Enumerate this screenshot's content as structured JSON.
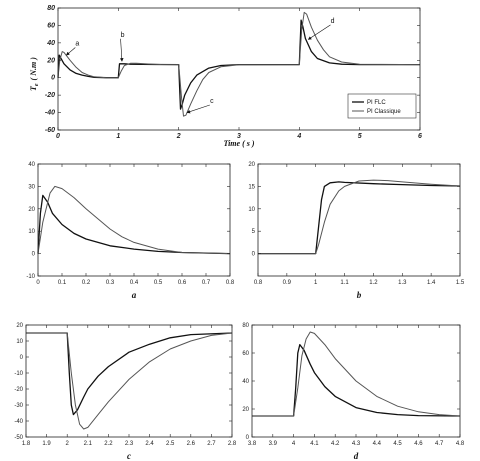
{
  "chart_data": [
    {
      "id": "main",
      "type": "line",
      "xlabel": "Time ( s )",
      "ylabel": "T",
      "ylabel_sub": "e",
      "ylabel_unit": "( N.m )",
      "xlim": [
        0,
        6
      ],
      "ylim": [
        -60,
        80
      ],
      "xticks": [
        0,
        1,
        2,
        3,
        4,
        5,
        6
      ],
      "yticks": [
        -60,
        -40,
        -20,
        0,
        20,
        40,
        60,
        80
      ],
      "legend": {
        "placement": "bottom-right",
        "entries": [
          "PI FLC",
          "PI Classique"
        ]
      },
      "annotations": [
        "a",
        "b",
        "c",
        "d"
      ],
      "series": [
        {
          "name": "PI FLC",
          "x": [
            0,
            0.02,
            0.05,
            0.1,
            0.2,
            0.3,
            0.4,
            0.5,
            0.6,
            0.8,
            1.0,
            1.02,
            1.06,
            1.1,
            1.2,
            1.4,
            1.6,
            2.0,
            2.03,
            2.06,
            2.1,
            2.2,
            2.3,
            2.5,
            2.7,
            3.0,
            4.0,
            4.03,
            4.06,
            4.1,
            4.2,
            4.3,
            4.5,
            4.7,
            5.0,
            6.0
          ],
          "y": [
            0,
            26,
            22,
            16,
            9,
            5,
            3,
            1.5,
            0.5,
            0,
            0,
            16,
            16,
            16,
            15.5,
            15.3,
            15.2,
            15,
            -36,
            -30,
            -20,
            -6,
            3,
            11,
            14,
            15,
            15,
            66,
            58,
            45,
            30,
            22,
            17,
            15.5,
            15,
            15
          ]
        },
        {
          "name": "PI Classique",
          "x": [
            0,
            0.03,
            0.07,
            0.1,
            0.2,
            0.3,
            0.4,
            0.5,
            0.6,
            0.8,
            1.0,
            1.05,
            1.1,
            1.2,
            1.3,
            1.5,
            1.7,
            2.0,
            2.05,
            2.08,
            2.12,
            2.2,
            2.3,
            2.4,
            2.5,
            2.7,
            3.0,
            4.0,
            4.04,
            4.08,
            4.12,
            4.2,
            4.3,
            4.4,
            4.5,
            4.7,
            5.0,
            6.0
          ],
          "y": [
            0,
            20,
            30,
            29,
            20,
            12,
            6,
            3,
            1,
            0,
            0,
            8,
            14,
            16.5,
            16.5,
            15.7,
            15.2,
            15,
            -25,
            -44,
            -43,
            -30,
            -15,
            -2,
            6,
            12.5,
            14.8,
            15,
            55,
            75,
            73,
            58,
            43,
            32,
            24,
            18,
            15.5,
            15
          ]
        }
      ]
    },
    {
      "id": "a",
      "type": "line",
      "caption": "a",
      "xlim": [
        0,
        0.8
      ],
      "ylim": [
        -10,
        40
      ],
      "xticks": [
        "0",
        "0.1",
        "0.2",
        "0.3",
        "0.4",
        "0.5",
        "0.6",
        "0.7",
        "0.8"
      ],
      "yticks": [
        "-10",
        "0",
        "10",
        "20",
        "30",
        "40"
      ],
      "series": [
        {
          "name": "",
          "x": [
            0,
            0.01,
            0.02,
            0.04,
            0.06,
            0.1,
            0.15,
            0.2,
            0.3,
            0.4,
            0.5,
            0.6,
            0.8
          ],
          "y": [
            0,
            18,
            26,
            23,
            18,
            13,
            9,
            6.5,
            3.5,
            2,
            1,
            0.5,
            0
          ]
        },
        {
          "name": "",
          "x": [
            0,
            0.02,
            0.05,
            0.07,
            0.1,
            0.15,
            0.2,
            0.25,
            0.3,
            0.35,
            0.4,
            0.5,
            0.6,
            0.8
          ],
          "y": [
            0,
            14,
            27,
            30,
            29,
            25,
            20,
            15.5,
            11,
            7.5,
            5,
            2,
            0.5,
            0
          ]
        }
      ]
    },
    {
      "id": "b",
      "type": "line",
      "caption": "b",
      "xlim": [
        0.8,
        1.5
      ],
      "ylim": [
        -5,
        20
      ],
      "xticks": [
        "0.8",
        "0.9",
        "1",
        "1.1",
        "1.2",
        "1.3",
        "1.4",
        "1.5"
      ],
      "yticks": [
        "0",
        "5",
        "10",
        "15",
        "20"
      ],
      "series": [
        {
          "name": "",
          "x": [
            0.8,
            1.0,
            1.01,
            1.02,
            1.03,
            1.05,
            1.08,
            1.1,
            1.2,
            1.3,
            1.4,
            1.5
          ],
          "y": [
            0,
            0,
            6,
            12,
            15,
            15.8,
            16,
            15.9,
            15.6,
            15.4,
            15.2,
            15.1
          ]
        },
        {
          "name": "",
          "x": [
            0.8,
            1.0,
            1.01,
            1.03,
            1.05,
            1.08,
            1.1,
            1.15,
            1.2,
            1.25,
            1.3,
            1.4,
            1.5
          ],
          "y": [
            0,
            0,
            2,
            7,
            11,
            14,
            15,
            16.2,
            16.4,
            16.3,
            16,
            15.5,
            15.1
          ]
        }
      ]
    },
    {
      "id": "c",
      "type": "line",
      "caption": "c",
      "xlim": [
        1.8,
        2.8
      ],
      "ylim": [
        -50,
        20
      ],
      "xticks": [
        "1.8",
        "1.9",
        "2",
        "2.1",
        "2.2",
        "2.3",
        "2.4",
        "2.5",
        "2.6",
        "2.7",
        "2.8"
      ],
      "yticks": [
        "-50",
        "-40",
        "-30",
        "-20",
        "-10",
        "0",
        "10",
        "20"
      ],
      "series": [
        {
          "name": "",
          "x": [
            1.8,
            2.0,
            2.01,
            2.02,
            2.03,
            2.05,
            2.08,
            2.1,
            2.15,
            2.2,
            2.3,
            2.4,
            2.5,
            2.6,
            2.8
          ],
          "y": [
            15,
            15,
            -10,
            -30,
            -36,
            -33,
            -25,
            -20,
            -12,
            -6,
            3,
            8,
            12,
            14,
            15
          ]
        },
        {
          "name": "",
          "x": [
            1.8,
            2.0,
            2.02,
            2.04,
            2.06,
            2.08,
            2.1,
            2.15,
            2.2,
            2.3,
            2.4,
            2.5,
            2.6,
            2.7,
            2.8
          ],
          "y": [
            15,
            15,
            -10,
            -30,
            -42,
            -45,
            -44,
            -36,
            -28,
            -14,
            -3,
            5,
            10,
            13.5,
            15
          ]
        }
      ]
    },
    {
      "id": "d",
      "type": "line",
      "caption": "d",
      "xlim": [
        3.8,
        4.8
      ],
      "ylim": [
        0,
        80
      ],
      "xticks": [
        "3.8",
        "3.9",
        "4",
        "4.1",
        "4.2",
        "4.3",
        "4.4",
        "4.5",
        "4.6",
        "4.7",
        "4.8"
      ],
      "yticks": [
        "0",
        "20",
        "40",
        "60",
        "80"
      ],
      "series": [
        {
          "name": "",
          "x": [
            3.8,
            4.0,
            4.01,
            4.02,
            4.03,
            4.05,
            4.08,
            4.1,
            4.15,
            4.2,
            4.3,
            4.4,
            4.5,
            4.6,
            4.8
          ],
          "y": [
            15,
            15,
            35,
            60,
            66,
            62,
            52,
            46,
            36,
            29,
            21,
            17.5,
            16,
            15.3,
            15
          ]
        },
        {
          "name": "",
          "x": [
            3.8,
            4.0,
            4.02,
            4.04,
            4.06,
            4.08,
            4.1,
            4.15,
            4.2,
            4.3,
            4.4,
            4.5,
            4.6,
            4.7,
            4.8
          ],
          "y": [
            15,
            15,
            35,
            58,
            70,
            75,
            74,
            66,
            56,
            40,
            29,
            22,
            18,
            16,
            15
          ]
        }
      ]
    }
  ]
}
